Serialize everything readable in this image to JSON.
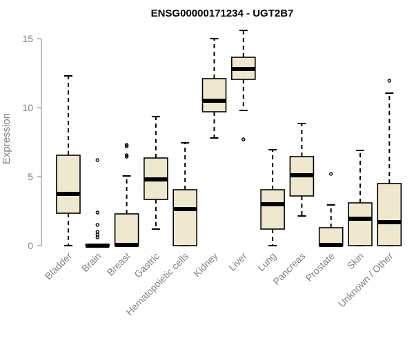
{
  "chart_data": {
    "type": "box",
    "title": "ENSG00000171234 - UGT2B7",
    "ylabel": "Expression",
    "ylim": [
      0,
      15.6
    ],
    "yticks": [
      0,
      5,
      10,
      15
    ],
    "box_fill": "#EEE8D0",
    "stroke": "#000000",
    "categories": [
      "Bladder",
      "Brain",
      "Breast",
      "Gastric",
      "Hematopoietic cells",
      "Kidney",
      "Liver",
      "Lung",
      "Pancreas",
      "Prostate",
      "Skin",
      "Unknown / Other"
    ],
    "boxes": [
      {
        "min": 0.0,
        "q1": 2.35,
        "median": 3.75,
        "q3": 6.55,
        "max": 12.3,
        "outliers": []
      },
      {
        "min": 0.0,
        "q1": 0.0,
        "median": 0.0,
        "q3": 0.05,
        "max": 0.1,
        "outliers": [
          0.6,
          0.8,
          1.0,
          1.5,
          2.4,
          6.2
        ]
      },
      {
        "min": 0.0,
        "q1": 0.0,
        "median": 0.05,
        "q3": 2.3,
        "max": 5.05,
        "outliers": [
          6.45,
          6.55,
          7.2,
          7.3
        ]
      },
      {
        "min": 1.2,
        "q1": 3.35,
        "median": 4.8,
        "q3": 6.35,
        "max": 9.35,
        "outliers": []
      },
      {
        "min": 0.0,
        "q1": 0.0,
        "median": 2.65,
        "q3": 4.05,
        "max": 7.45,
        "outliers": []
      },
      {
        "min": 7.8,
        "q1": 9.7,
        "median": 10.5,
        "q3": 12.1,
        "max": 15.0,
        "outliers": []
      },
      {
        "min": 9.8,
        "q1": 12.05,
        "median": 12.8,
        "q3": 13.65,
        "max": 15.6,
        "outliers": [
          7.7
        ]
      },
      {
        "min": 0.0,
        "q1": 1.2,
        "median": 3.0,
        "q3": 4.05,
        "max": 6.95,
        "outliers": []
      },
      {
        "min": 2.15,
        "q1": 3.6,
        "median": 5.1,
        "q3": 6.45,
        "max": 8.85,
        "outliers": []
      },
      {
        "min": 0.0,
        "q1": 0.0,
        "median": 0.05,
        "q3": 1.3,
        "max": 2.95,
        "outliers": [
          5.2
        ]
      },
      {
        "min": 0.0,
        "q1": 0.0,
        "median": 1.95,
        "q3": 3.1,
        "max": 6.9,
        "outliers": []
      },
      {
        "min": 0.0,
        "q1": 0.0,
        "median": 1.7,
        "q3": 4.5,
        "max": 11.05,
        "outliers": [
          11.95
        ]
      }
    ]
  }
}
